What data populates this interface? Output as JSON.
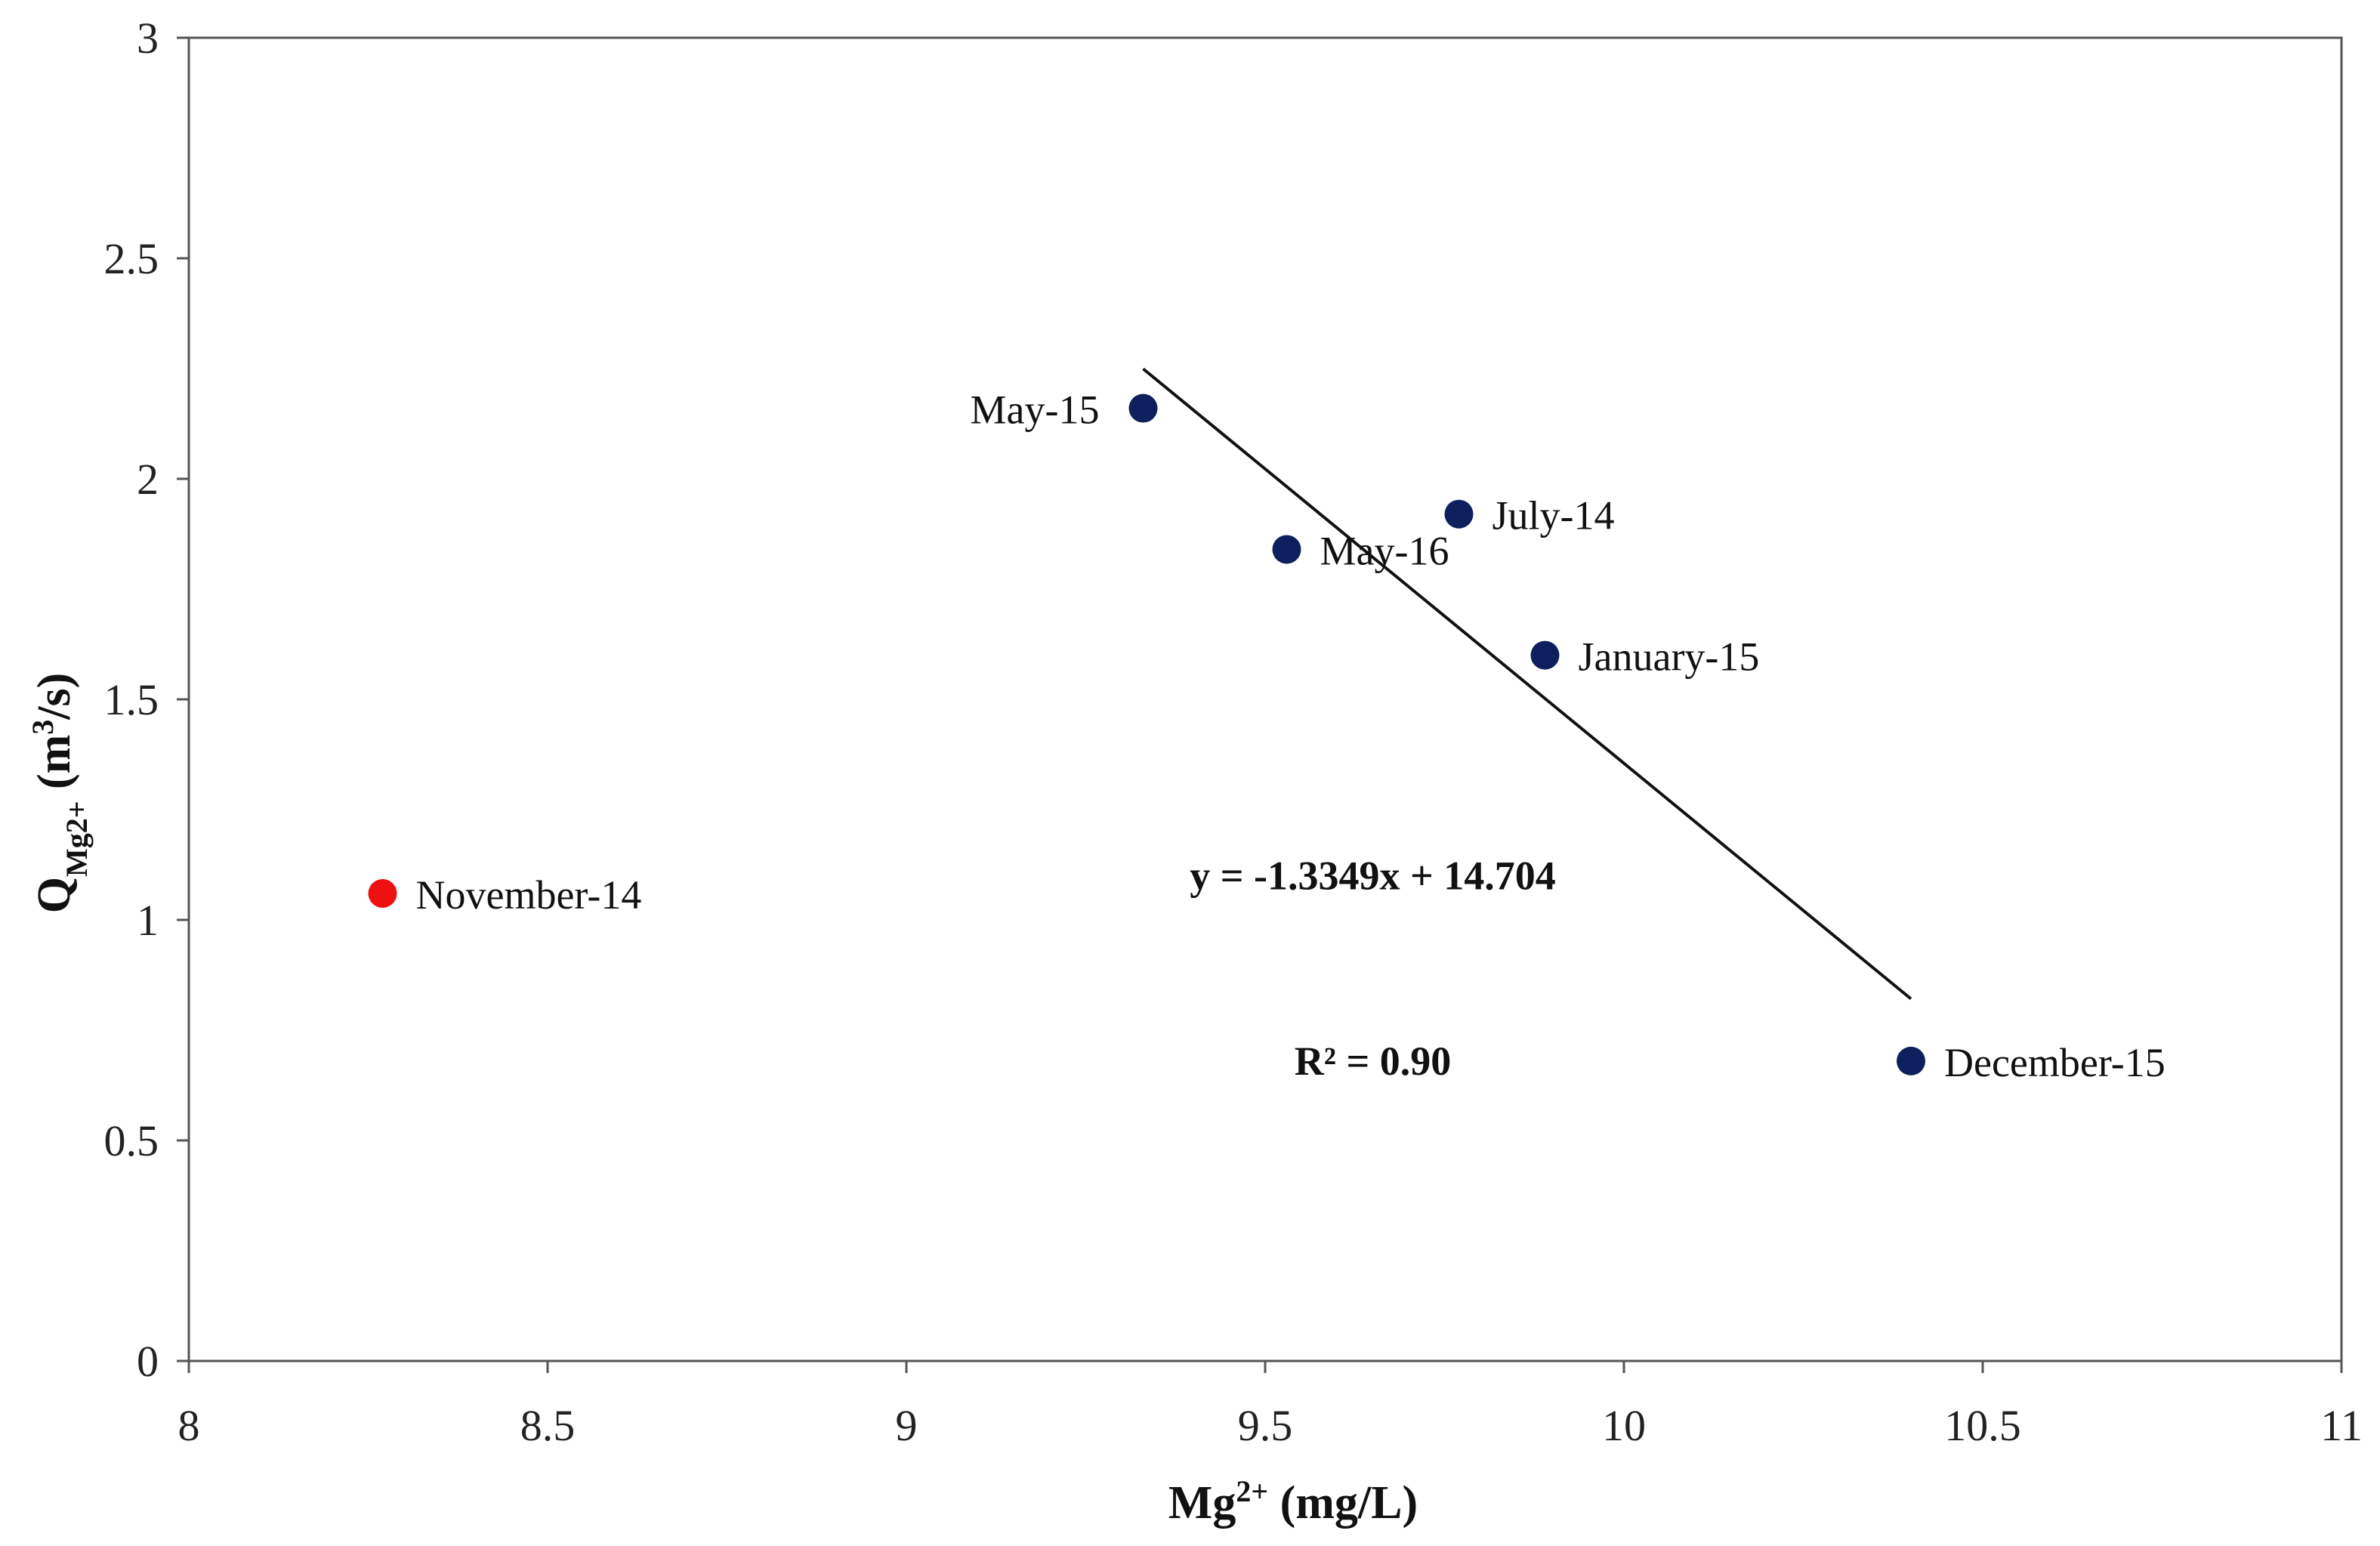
{
  "chart_data": {
    "type": "scatter",
    "title": "",
    "xlabel": {
      "base": "Mg",
      "sup": "2+",
      "unit": " (mg/L)"
    },
    "ylabel": {
      "base": "Q",
      "sub": "Mg2+",
      "unit_pre": " (m",
      "unit_sup": "3",
      "unit_post": "/s)"
    },
    "xlim": [
      8,
      11
    ],
    "ylim": [
      0,
      3
    ],
    "xticks": [
      8,
      8.5,
      9,
      9.5,
      10,
      10.5,
      11
    ],
    "yticks": [
      0,
      0.5,
      1,
      1.5,
      2,
      2.5,
      3
    ],
    "xtick_labels": [
      "8",
      "8.5",
      "9",
      "9.5",
      "10",
      "10.5",
      "11"
    ],
    "ytick_labels": [
      "0",
      "0.5",
      "1",
      "1.5",
      "2",
      "2.5",
      "3"
    ],
    "grid": false,
    "points": [
      {
        "label": "May-15",
        "x": 9.33,
        "y": 2.16,
        "color": "#0d1f5c",
        "label_side": "left"
      },
      {
        "label": "July-14",
        "x": 9.77,
        "y": 1.92,
        "color": "#0d1f5c",
        "label_side": "right"
      },
      {
        "label": "May-16",
        "x": 9.53,
        "y": 1.84,
        "color": "#0d1f5c",
        "label_side": "right"
      },
      {
        "label": "January-15",
        "x": 9.89,
        "y": 1.6,
        "color": "#0d1f5c",
        "label_side": "right"
      },
      {
        "label": "December-15",
        "x": 10.4,
        "y": 0.68,
        "color": "#0d1f5c",
        "label_side": "right"
      },
      {
        "label": "November-14",
        "x": 8.27,
        "y": 1.06,
        "color": "#ee1111",
        "label_side": "right"
      }
    ],
    "trendline": {
      "slope": -1.3349,
      "intercept": 14.704,
      "x_start": 9.33,
      "x_end": 10.4
    },
    "equation_text": "y = -1.3349x + 14.704",
    "equation_pos": {
      "x": 9.65,
      "y": 1.1
    },
    "r2_text": "R² = 0.90",
    "r2_pos": {
      "x": 9.65,
      "y": 0.68
    }
  }
}
